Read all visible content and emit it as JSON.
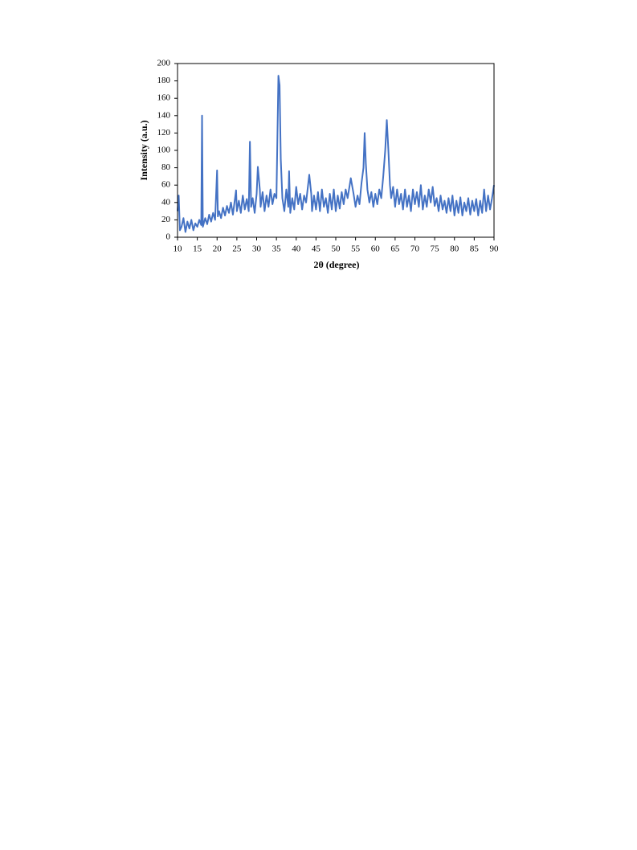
{
  "chart_data": {
    "type": "line",
    "x_label": "2θ (degree)",
    "y_label": "Intensity (a.u.)",
    "color": "#4472c4",
    "xlim": [
      10,
      90
    ],
    "xticks": [
      10,
      15,
      20,
      25,
      30,
      35,
      40,
      45,
      50,
      55,
      60,
      65,
      70,
      75,
      80,
      85,
      90
    ],
    "ylim": [
      0,
      200
    ],
    "yticks": [
      0,
      20,
      40,
      60,
      80,
      100,
      120,
      140,
      160,
      180,
      200
    ],
    "grid": false,
    "x": [
      10,
      10.3,
      10.6,
      11,
      11.5,
      12,
      12.5,
      13,
      13.5,
      14,
      14.5,
      15,
      15.5,
      16,
      16.2,
      16.4,
      17,
      17.5,
      18,
      18.5,
      19,
      19.5,
      20,
      20.2,
      20.5,
      21,
      21.5,
      22,
      22.5,
      23,
      23.5,
      24,
      24.8,
      25,
      25.5,
      26,
      26.5,
      27,
      27.5,
      28,
      28.3,
      28.6,
      29,
      29.5,
      30,
      30.3,
      30.8,
      31,
      31.5,
      32,
      32.5,
      33,
      33.5,
      34,
      34.5,
      35,
      35.5,
      35.8,
      36.1,
      36.5,
      37,
      37.5,
      38,
      38.2,
      38.5,
      39,
      39.5,
      40,
      40.5,
      41,
      41.5,
      42,
      42.5,
      43,
      43.3,
      43.8,
      44,
      44.5,
      45,
      45.5,
      46,
      46.5,
      47,
      47.5,
      48,
      48.5,
      49,
      49.5,
      50,
      50.5,
      51,
      51.5,
      52,
      52.5,
      53,
      53.8,
      54.5,
      55,
      55.5,
      56,
      56.5,
      57,
      57.3,
      57.6,
      58,
      58.5,
      59,
      59.5,
      60,
      60.5,
      61,
      61.5,
      62,
      62.5,
      62.9,
      63.3,
      63.7,
      64,
      64.5,
      65,
      65.5,
      66,
      66.5,
      67,
      67.5,
      68,
      68.5,
      69,
      69.5,
      70,
      70.5,
      71,
      71.5,
      72,
      72.5,
      73,
      73.5,
      74,
      74.5,
      75,
      75.5,
      76,
      76.5,
      77,
      77.5,
      78,
      78.5,
      79,
      79.5,
      80,
      80.5,
      81,
      81.5,
      82,
      82.5,
      83,
      83.5,
      84,
      84.5,
      85,
      85.5,
      86,
      86.5,
      87,
      87.5,
      88,
      88.5,
      89,
      89.5,
      90
    ],
    "values": [
      30,
      48,
      8,
      12,
      22,
      6,
      18,
      10,
      20,
      8,
      16,
      12,
      20,
      14,
      140,
      12,
      22,
      15,
      26,
      18,
      28,
      20,
      77,
      24,
      30,
      22,
      34,
      25,
      36,
      28,
      40,
      26,
      54,
      30,
      42,
      28,
      48,
      32,
      44,
      30,
      110,
      35,
      45,
      28,
      50,
      81,
      55,
      35,
      52,
      30,
      48,
      35,
      55,
      38,
      50,
      45,
      186,
      175,
      90,
      45,
      30,
      55,
      35,
      76,
      28,
      45,
      32,
      58,
      38,
      50,
      32,
      48,
      40,
      60,
      72,
      50,
      30,
      48,
      32,
      52,
      30,
      55,
      35,
      45,
      28,
      50,
      32,
      55,
      30,
      48,
      33,
      52,
      38,
      55,
      45,
      68,
      50,
      35,
      48,
      38,
      62,
      80,
      120,
      85,
      55,
      40,
      52,
      35,
      50,
      38,
      55,
      45,
      70,
      100,
      135,
      100,
      60,
      45,
      58,
      35,
      55,
      38,
      50,
      32,
      55,
      35,
      48,
      30,
      55,
      38,
      52,
      35,
      60,
      32,
      48,
      35,
      55,
      40,
      58,
      36,
      45,
      30,
      48,
      32,
      42,
      28,
      45,
      30,
      48,
      25,
      42,
      28,
      46,
      25,
      40,
      30,
      45,
      26,
      42,
      30,
      44,
      25,
      42,
      28,
      55,
      30,
      48,
      32,
      45,
      60
    ]
  }
}
